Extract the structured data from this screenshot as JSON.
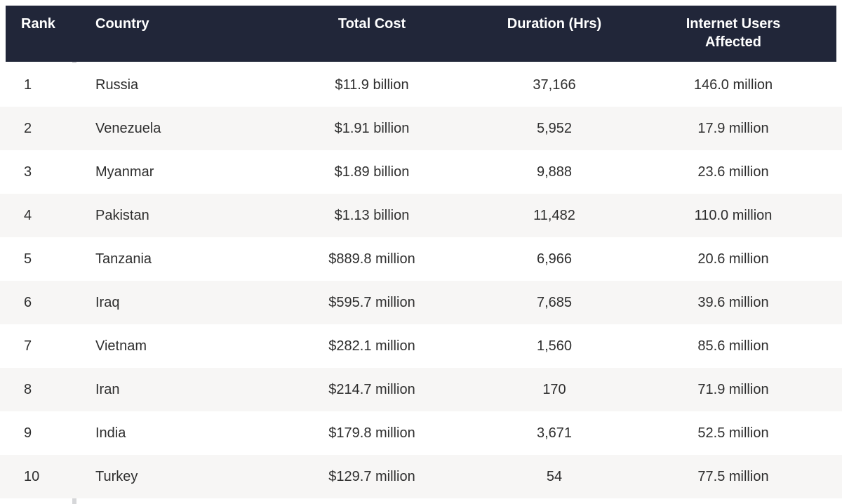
{
  "chart_data": {
    "type": "table",
    "columns": [
      "Rank",
      "Country",
      "Total Cost",
      "Duration (Hrs)",
      "Internet Users Affected"
    ],
    "rows": [
      {
        "rank": "1",
        "country": "Russia",
        "total_cost": "$11.9 billion",
        "duration_hrs": "37,166",
        "users_affected": "146.0 million"
      },
      {
        "rank": "2",
        "country": "Venezuela",
        "total_cost": "$1.91 billion",
        "duration_hrs": "5,952",
        "users_affected": "17.9 million"
      },
      {
        "rank": "3",
        "country": "Myanmar",
        "total_cost": "$1.89 billion",
        "duration_hrs": "9,888",
        "users_affected": "23.6 million"
      },
      {
        "rank": "4",
        "country": "Pakistan",
        "total_cost": "$1.13 billion",
        "duration_hrs": "11,482",
        "users_affected": "110.0 million"
      },
      {
        "rank": "5",
        "country": "Tanzania",
        "total_cost": "$889.8 million",
        "duration_hrs": "6,966",
        "users_affected": "20.6 million"
      },
      {
        "rank": "6",
        "country": "Iraq",
        "total_cost": "$595.7 million",
        "duration_hrs": "7,685",
        "users_affected": "39.6 million"
      },
      {
        "rank": "7",
        "country": "Vietnam",
        "total_cost": "$282.1 million",
        "duration_hrs": "1,560",
        "users_affected": "85.6 million"
      },
      {
        "rank": "8",
        "country": "Iran",
        "total_cost": "$214.7 million",
        "duration_hrs": "170",
        "users_affected": "71.9 million"
      },
      {
        "rank": "9",
        "country": "India",
        "total_cost": "$179.8 million",
        "duration_hrs": "3,671",
        "users_affected": "52.5 million"
      },
      {
        "rank": "10",
        "country": "Turkey",
        "total_cost": "$129.7 million",
        "duration_hrs": "54",
        "users_affected": "77.5 million"
      }
    ]
  },
  "colors": {
    "header_bg": "#212639",
    "header_text": "#ffffff",
    "row_stripe": "#f7f6f5",
    "divider": "#d6d7d9",
    "text": "#2e2e2e"
  }
}
